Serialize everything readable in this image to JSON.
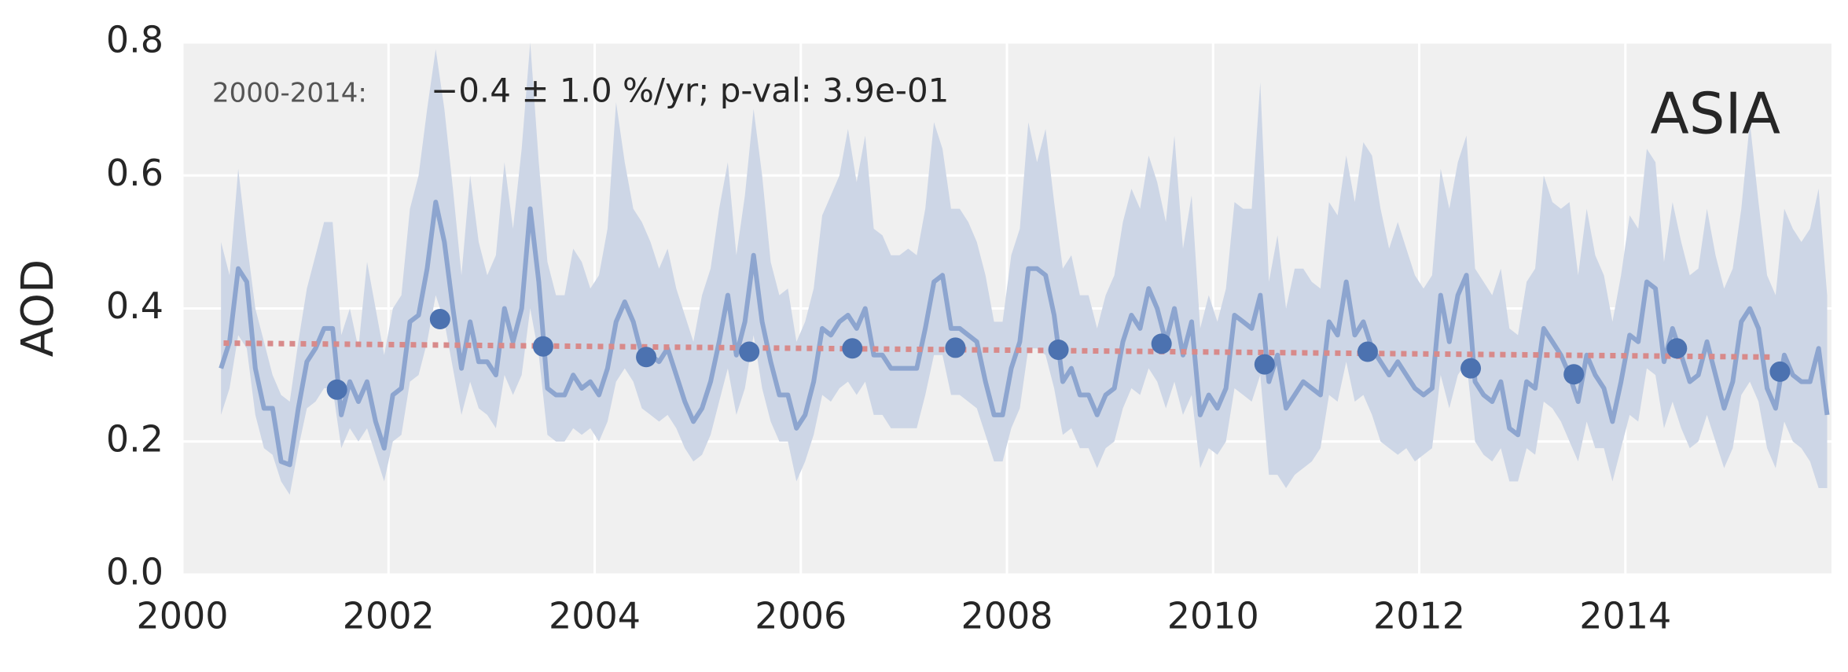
{
  "chart_data": {
    "type": "line",
    "ylabel": "AOD",
    "region": "ASIA",
    "period_label": "2000-2014:",
    "trend_label": "−0.4 ± 1.0 %/yr; p-val: 3.9e-01",
    "xlim": [
      2000,
      2016
    ],
    "xticks": [
      2000,
      2002,
      2004,
      2006,
      2008,
      2010,
      2012,
      2014
    ],
    "ylim": [
      0,
      0.8
    ],
    "yticks": [
      {
        "value": 0,
        "label": "0.0"
      },
      0.2,
      0.4,
      0.6,
      0.8
    ],
    "grid": true,
    "x": [
      2000.375,
      2000.458,
      2000.542,
      2000.625,
      2000.708,
      2000.792,
      2000.875,
      2000.958,
      2001.042,
      2001.125,
      2001.208,
      2001.292,
      2001.375,
      2001.458,
      2001.542,
      2001.625,
      2001.708,
      2001.792,
      2001.875,
      2001.958,
      2002.042,
      2002.125,
      2002.208,
      2002.292,
      2002.375,
      2002.458,
      2002.542,
      2002.625,
      2002.708,
      2002.792,
      2002.875,
      2002.958,
      2003.042,
      2003.125,
      2003.208,
      2003.292,
      2003.375,
      2003.458,
      2003.542,
      2003.625,
      2003.708,
      2003.792,
      2003.875,
      2003.958,
      2004.042,
      2004.125,
      2004.208,
      2004.292,
      2004.375,
      2004.458,
      2004.542,
      2004.625,
      2004.708,
      2004.792,
      2004.875,
      2004.958,
      2005.042,
      2005.125,
      2005.208,
      2005.292,
      2005.375,
      2005.458,
      2005.542,
      2005.625,
      2005.708,
      2005.792,
      2005.875,
      2005.958,
      2006.042,
      2006.125,
      2006.208,
      2006.292,
      2006.375,
      2006.458,
      2006.542,
      2006.625,
      2006.708,
      2006.792,
      2006.875,
      2006.958,
      2007.042,
      2007.125,
      2007.208,
      2007.292,
      2007.375,
      2007.458,
      2007.542,
      2007.625,
      2007.708,
      2007.792,
      2007.875,
      2007.958,
      2008.042,
      2008.125,
      2008.208,
      2008.292,
      2008.375,
      2008.458,
      2008.542,
      2008.625,
      2008.708,
      2008.792,
      2008.875,
      2008.958,
      2009.042,
      2009.125,
      2009.208,
      2009.292,
      2009.375,
      2009.458,
      2009.542,
      2009.625,
      2009.708,
      2009.792,
      2009.875,
      2009.958,
      2010.042,
      2010.125,
      2010.208,
      2010.292,
      2010.375,
      2010.458,
      2010.542,
      2010.625,
      2010.708,
      2010.792,
      2010.875,
      2010.958,
      2011.042,
      2011.125,
      2011.208,
      2011.292,
      2011.375,
      2011.458,
      2011.542,
      2011.625,
      2011.708,
      2011.792,
      2011.875,
      2011.958,
      2012.042,
      2012.125,
      2012.208,
      2012.292,
      2012.375,
      2012.458,
      2012.542,
      2012.625,
      2012.708,
      2012.792,
      2012.875,
      2012.958,
      2013.042,
      2013.125,
      2013.208,
      2013.292,
      2013.375,
      2013.458,
      2013.542,
      2013.625,
      2013.708,
      2013.792,
      2013.875,
      2013.958,
      2014.042,
      2014.125,
      2014.208,
      2014.292,
      2014.375,
      2014.458,
      2014.542,
      2014.625,
      2014.708,
      2014.792,
      2014.875,
      2014.958,
      2015.042,
      2015.125,
      2015.208,
      2015.292,
      2015.375,
      2015.458,
      2015.542,
      2015.625,
      2015.708,
      2015.792,
      2015.875,
      2015.958
    ],
    "band": {
      "color": "#cdd6e6",
      "upper": [
        0.5,
        0.45,
        0.61,
        0.5,
        0.4,
        0.35,
        0.3,
        0.27,
        0.26,
        0.35,
        0.43,
        0.48,
        0.53,
        0.53,
        0.36,
        0.4,
        0.34,
        0.47,
        0.4,
        0.33,
        0.4,
        0.42,
        0.55,
        0.6,
        0.7,
        0.79,
        0.7,
        0.58,
        0.45,
        0.6,
        0.5,
        0.45,
        0.48,
        0.62,
        0.52,
        0.64,
        0.8,
        0.62,
        0.47,
        0.42,
        0.42,
        0.49,
        0.47,
        0.43,
        0.45,
        0.52,
        0.71,
        0.62,
        0.55,
        0.53,
        0.5,
        0.46,
        0.49,
        0.43,
        0.39,
        0.35,
        0.42,
        0.46,
        0.55,
        0.62,
        0.48,
        0.57,
        0.7,
        0.6,
        0.47,
        0.42,
        0.43,
        0.35,
        0.38,
        0.43,
        0.54,
        0.57,
        0.6,
        0.67,
        0.59,
        0.66,
        0.52,
        0.51,
        0.48,
        0.48,
        0.49,
        0.48,
        0.55,
        0.68,
        0.64,
        0.55,
        0.55,
        0.53,
        0.5,
        0.45,
        0.38,
        0.38,
        0.48,
        0.52,
        0.68,
        0.62,
        0.67,
        0.56,
        0.46,
        0.48,
        0.42,
        0.42,
        0.37,
        0.42,
        0.45,
        0.53,
        0.58,
        0.55,
        0.63,
        0.59,
        0.53,
        0.66,
        0.49,
        0.57,
        0.37,
        0.42,
        0.38,
        0.43,
        0.56,
        0.55,
        0.55,
        0.74,
        0.44,
        0.51,
        0.4,
        0.46,
        0.46,
        0.44,
        0.43,
        0.56,
        0.54,
        0.63,
        0.56,
        0.65,
        0.63,
        0.55,
        0.49,
        0.53,
        0.49,
        0.45,
        0.43,
        0.45,
        0.61,
        0.55,
        0.62,
        0.66,
        0.46,
        0.44,
        0.42,
        0.46,
        0.37,
        0.36,
        0.44,
        0.46,
        0.6,
        0.56,
        0.55,
        0.56,
        0.45,
        0.55,
        0.48,
        0.45,
        0.38,
        0.45,
        0.54,
        0.52,
        0.64,
        0.62,
        0.47,
        0.56,
        0.5,
        0.45,
        0.46,
        0.55,
        0.48,
        0.43,
        0.46,
        0.55,
        0.68,
        0.56,
        0.45,
        0.42,
        0.55,
        0.52,
        0.5,
        0.52,
        0.58,
        0.42
      ],
      "lower": [
        0.24,
        0.28,
        0.36,
        0.34,
        0.24,
        0.19,
        0.18,
        0.14,
        0.12,
        0.19,
        0.25,
        0.26,
        0.28,
        0.28,
        0.19,
        0.22,
        0.2,
        0.22,
        0.18,
        0.14,
        0.2,
        0.21,
        0.29,
        0.3,
        0.35,
        0.42,
        0.38,
        0.31,
        0.24,
        0.29,
        0.25,
        0.24,
        0.22,
        0.3,
        0.27,
        0.3,
        0.4,
        0.33,
        0.21,
        0.2,
        0.2,
        0.22,
        0.21,
        0.22,
        0.2,
        0.23,
        0.29,
        0.31,
        0.29,
        0.25,
        0.24,
        0.23,
        0.24,
        0.22,
        0.19,
        0.17,
        0.18,
        0.21,
        0.26,
        0.31,
        0.24,
        0.28,
        0.36,
        0.28,
        0.23,
        0.2,
        0.2,
        0.14,
        0.17,
        0.21,
        0.27,
        0.26,
        0.28,
        0.29,
        0.27,
        0.29,
        0.24,
        0.24,
        0.22,
        0.22,
        0.22,
        0.22,
        0.27,
        0.33,
        0.33,
        0.27,
        0.27,
        0.26,
        0.25,
        0.21,
        0.17,
        0.17,
        0.22,
        0.25,
        0.34,
        0.34,
        0.33,
        0.28,
        0.21,
        0.22,
        0.19,
        0.19,
        0.16,
        0.19,
        0.2,
        0.25,
        0.28,
        0.27,
        0.31,
        0.29,
        0.25,
        0.29,
        0.24,
        0.27,
        0.16,
        0.19,
        0.18,
        0.2,
        0.28,
        0.27,
        0.26,
        0.3,
        0.15,
        0.15,
        0.13,
        0.15,
        0.16,
        0.17,
        0.19,
        0.27,
        0.26,
        0.32,
        0.26,
        0.27,
        0.24,
        0.2,
        0.19,
        0.18,
        0.19,
        0.17,
        0.18,
        0.19,
        0.3,
        0.25,
        0.3,
        0.32,
        0.2,
        0.18,
        0.17,
        0.19,
        0.14,
        0.14,
        0.19,
        0.18,
        0.26,
        0.25,
        0.23,
        0.2,
        0.17,
        0.23,
        0.19,
        0.19,
        0.14,
        0.19,
        0.24,
        0.23,
        0.31,
        0.3,
        0.22,
        0.26,
        0.22,
        0.19,
        0.2,
        0.24,
        0.2,
        0.16,
        0.19,
        0.27,
        0.29,
        0.26,
        0.19,
        0.16,
        0.23,
        0.2,
        0.19,
        0.17,
        0.13,
        0.13
      ]
    },
    "monthly": {
      "color": "#8da5cf",
      "values": [
        0.31,
        0.35,
        0.46,
        0.44,
        0.31,
        0.25,
        0.25,
        0.17,
        0.165,
        0.25,
        0.32,
        0.34,
        0.37,
        0.37,
        0.24,
        0.29,
        0.26,
        0.29,
        0.23,
        0.19,
        0.27,
        0.28,
        0.38,
        0.39,
        0.46,
        0.56,
        0.5,
        0.4,
        0.31,
        0.38,
        0.32,
        0.32,
        0.3,
        0.4,
        0.35,
        0.4,
        0.55,
        0.44,
        0.28,
        0.27,
        0.27,
        0.3,
        0.28,
        0.29,
        0.27,
        0.31,
        0.38,
        0.41,
        0.38,
        0.33,
        0.33,
        0.32,
        0.34,
        0.3,
        0.26,
        0.23,
        0.25,
        0.29,
        0.35,
        0.42,
        0.33,
        0.38,
        0.48,
        0.38,
        0.32,
        0.27,
        0.27,
        0.22,
        0.24,
        0.29,
        0.37,
        0.36,
        0.38,
        0.39,
        0.37,
        0.4,
        0.33,
        0.33,
        0.31,
        0.31,
        0.31,
        0.31,
        0.37,
        0.44,
        0.45,
        0.37,
        0.37,
        0.36,
        0.35,
        0.29,
        0.24,
        0.24,
        0.31,
        0.35,
        0.46,
        0.46,
        0.45,
        0.39,
        0.29,
        0.31,
        0.27,
        0.27,
        0.24,
        0.27,
        0.28,
        0.35,
        0.39,
        0.37,
        0.43,
        0.4,
        0.35,
        0.4,
        0.33,
        0.38,
        0.24,
        0.27,
        0.25,
        0.28,
        0.39,
        0.38,
        0.37,
        0.42,
        0.29,
        0.33,
        0.25,
        0.27,
        0.29,
        0.28,
        0.27,
        0.38,
        0.36,
        0.44,
        0.36,
        0.38,
        0.34,
        0.32,
        0.3,
        0.32,
        0.3,
        0.28,
        0.27,
        0.28,
        0.42,
        0.35,
        0.42,
        0.45,
        0.29,
        0.27,
        0.26,
        0.29,
        0.22,
        0.21,
        0.29,
        0.28,
        0.37,
        0.35,
        0.33,
        0.3,
        0.26,
        0.33,
        0.3,
        0.28,
        0.23,
        0.29,
        0.36,
        0.35,
        0.44,
        0.43,
        0.32,
        0.37,
        0.33,
        0.29,
        0.3,
        0.35,
        0.3,
        0.25,
        0.29,
        0.38,
        0.4,
        0.37,
        0.28,
        0.25,
        0.33,
        0.3,
        0.29,
        0.29,
        0.34,
        0.24
      ]
    },
    "annual": {
      "color": "#4c72b0",
      "x": [
        2001.5,
        2002.5,
        2003.5,
        2004.5,
        2005.5,
        2006.5,
        2007.5,
        2008.5,
        2009.5,
        2010.5,
        2011.5,
        2012.5,
        2013.5,
        2014.5,
        2015.5
      ],
      "values": [
        0.278,
        0.384,
        0.343,
        0.327,
        0.335,
        0.34,
        0.341,
        0.338,
        0.347,
        0.316,
        0.335,
        0.31,
        0.301,
        0.34,
        0.305
      ]
    },
    "trend": {
      "color": "#d88a8a",
      "x": [
        2000.4,
        2015.4
      ],
      "values": [
        0.348,
        0.327
      ]
    }
  }
}
